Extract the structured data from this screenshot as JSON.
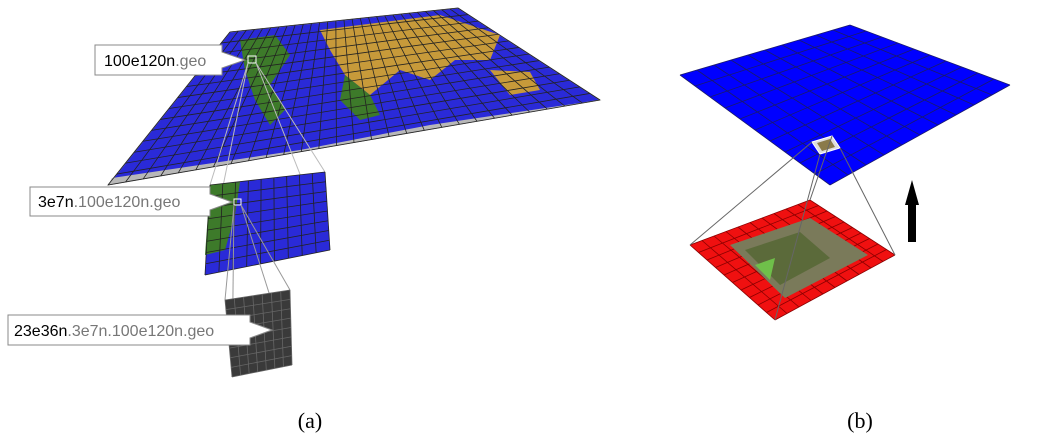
{
  "panels": [
    {
      "caption": "(a)",
      "labels": [
        {
          "head": "100e120n",
          "tail": ".geo"
        },
        {
          "head": "3e7n",
          "tail": ".100e120n.geo"
        },
        {
          "head": "23e36n",
          "tail": ".3e7n.100e120n.geo"
        }
      ]
    },
    {
      "caption": "(b)"
    }
  ]
}
